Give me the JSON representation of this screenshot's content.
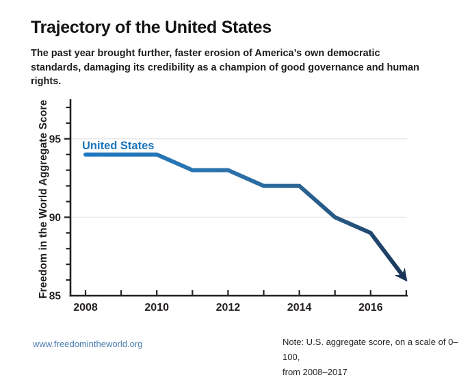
{
  "title": "Trajectory of the United States",
  "subtitle": "The past year brought further, faster erosion of America’s own democratic standards, damaging its credibility as a champion of good governance and human rights.",
  "footer": {
    "link": "www.freedomintheworld.org",
    "note_line1": "Note: U.S. aggregate score, on a scale of 0–100,",
    "note_line2": "from 2008–2017"
  },
  "colors": {
    "title_text": "#141414",
    "subtitle_text": "#1d1d20",
    "axis": "#231f20",
    "gridline": "#e7e7e7",
    "series_label_blue": "#1b75bb",
    "line_gradient": [
      "#1e79c1",
      "#2b72ab",
      "#29618f",
      "#23507a",
      "#1a3557"
    ],
    "arrow": "#1a3557",
    "link_blue": "#4a7cb0",
    "note_text": "#262626"
  },
  "chart_data": {
    "type": "line",
    "title": "Trajectory of the United States",
    "ylabel": "Freedom in the World Aggregate Score",
    "xlabel": "",
    "series_label": "United States",
    "x": [
      2008,
      2009,
      2010,
      2011,
      2012,
      2013,
      2014,
      2015,
      2016,
      2017
    ],
    "series": [
      {
        "name": "United States",
        "values": [
          94,
          94,
          94,
          93,
          93,
          92,
          92,
          90,
          89,
          86
        ]
      }
    ],
    "x_tick_labels": [
      "2008",
      "2010",
      "2012",
      "2014",
      "2016"
    ],
    "y_tick_labels": [
      "85",
      "90",
      "95"
    ],
    "minor_y_tick_step": 1,
    "xlim": [
      2008,
      2017
    ],
    "ylim": [
      85,
      97.5
    ],
    "grid_y": [
      90,
      95
    ],
    "grid": "horizontal only",
    "legend_position": "inline label above line start",
    "annotation": "line ends in a downward arrow at 2017"
  }
}
